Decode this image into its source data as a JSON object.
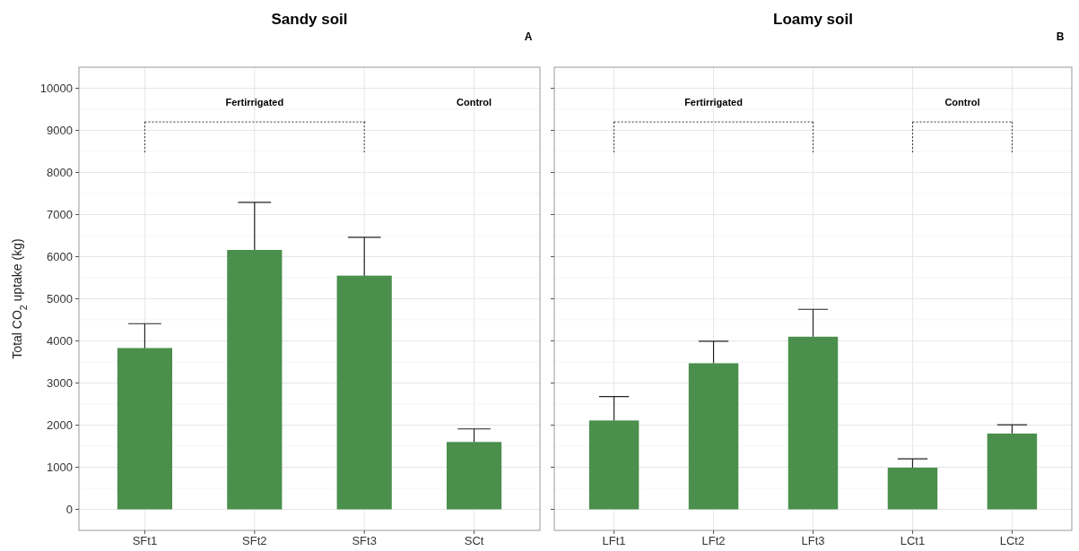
{
  "chart_data": [
    {
      "type": "bar",
      "title": "Sandy soil",
      "ylabel": "Total CO$_{2}$ uptake (kg)",
      "categories": [
        "SFt1",
        "SFt2",
        "SFt3",
        "SCt"
      ],
      "series": [
        {
          "color": "#4b8f4c",
          "values": [
            3830,
            6160,
            5550,
            1600
          ],
          "errors": [
            [
              3830,
              4410
            ],
            [
              6160,
              7290
            ],
            [
              5550,
              6460
            ],
            [
              1600,
              1910
            ]
          ]
        }
      ],
      "ylim": [
        -500,
        10500
      ],
      "yticks": [
        0,
        1000,
        2000,
        3000,
        4000,
        5000,
        6000,
        7000,
        8000,
        9000,
        10000
      ],
      "grid": true,
      "annotations": [
        "A",
        "Fertirrigated",
        "Control"
      ]
    },
    {
      "type": "bar",
      "title": "Loamy soil",
      "categories": [
        "LFt1",
        "LFt2",
        "LFt3",
        "LCt1",
        "LCt2"
      ],
      "series": [
        {
          "color": "#4b8f4c",
          "values": [
            2110,
            3470,
            4100,
            990,
            1800
          ],
          "errors": [
            [
              2110,
              2680
            ],
            [
              3470,
              3990
            ],
            [
              4100,
              4750
            ],
            [
              990,
              1200
            ],
            [
              1800,
              2010
            ]
          ]
        }
      ],
      "ylim": [
        -500,
        10500
      ],
      "yticks": [
        0,
        1000,
        2000,
        3000,
        4000,
        5000,
        6000,
        7000,
        8000,
        9000,
        10000
      ],
      "grid": true,
      "tick_labels": "x",
      "annotations": [
        "B",
        "Fertirrigated",
        "Control"
      ]
    }
  ]
}
